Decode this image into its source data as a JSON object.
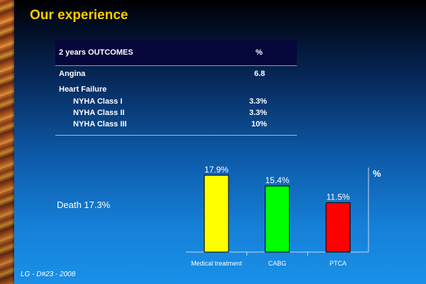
{
  "slide": {
    "title": "Our experience",
    "footer": "LG - D#23 -  2008",
    "death_label": "Death 17.3%"
  },
  "table": {
    "header_label": "2 years OUTCOMES",
    "header_value": "%",
    "rows": [
      {
        "label": "Angina",
        "value": "6.8"
      },
      {
        "label": "Heart Failure",
        "value": ""
      },
      {
        "label": "NYHA Class I",
        "value": "3.3%"
      },
      {
        "label": "NYHA Class II",
        "value": "3.3%"
      },
      {
        "label": "NYHA Class III",
        "value": "10%"
      }
    ]
  },
  "chart_data": {
    "type": "bar",
    "categories": [
      "Medical treatment",
      "CABG",
      "PTCA"
    ],
    "values": [
      17.9,
      15.4,
      11.5
    ],
    "data_labels": [
      "17.9%",
      "15.4%",
      "11.5%"
    ],
    "colors": [
      "#ffff00",
      "#00ff00",
      "#ff0000"
    ],
    "title": "",
    "xlabel": "",
    "ylabel": "%",
    "ylim": [
      0,
      25
    ],
    "grid": false
  }
}
